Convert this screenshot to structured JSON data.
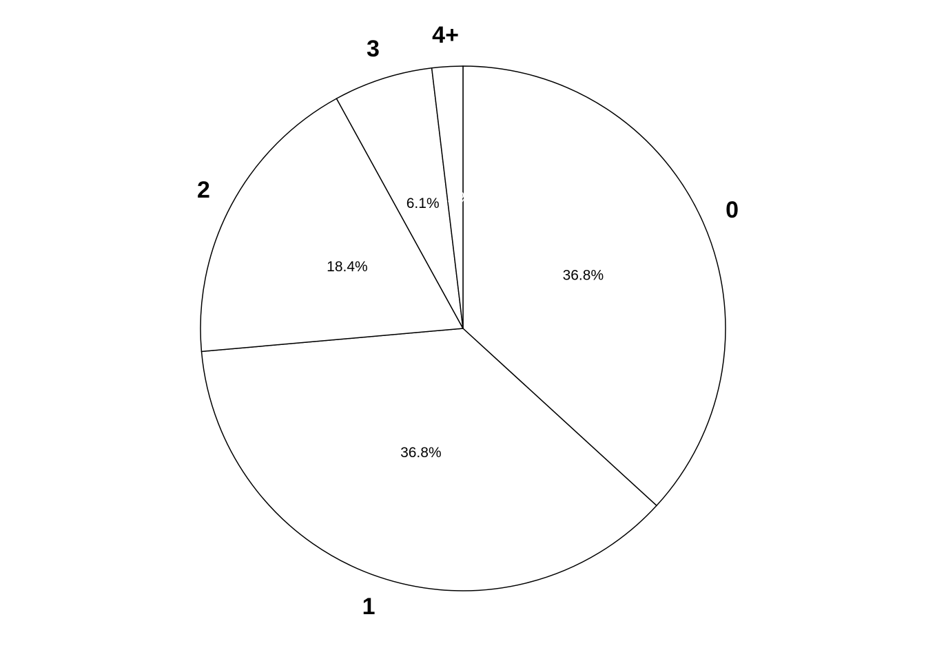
{
  "chart_data": {
    "type": "pie",
    "title": "",
    "categories": [
      "0",
      "1",
      "2",
      "3",
      "4+"
    ],
    "values": [
      36.8,
      36.8,
      18.4,
      6.1,
      1.9
    ],
    "labels": [
      "36.8%",
      "36.8%",
      "18.4%",
      "6.1%",
      "1.9%"
    ],
    "label_colors": [
      "#000000",
      "#000000",
      "#000000",
      "#000000",
      "#ffffff"
    ],
    "start": "12 o'clock",
    "direction": "clockwise",
    "fill_color": "#ffffff",
    "stroke_color": "#000000",
    "legend": "none"
  }
}
